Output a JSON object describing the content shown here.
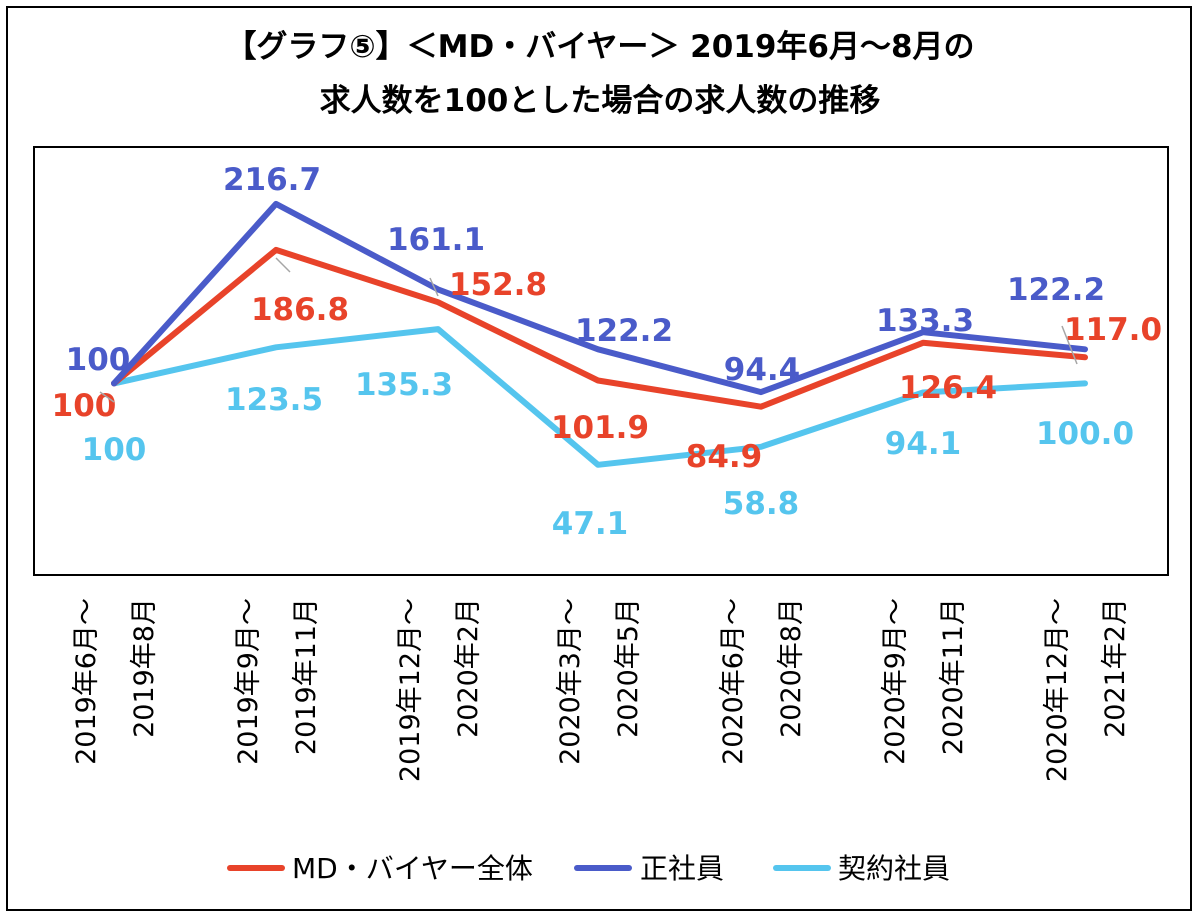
{
  "chart_data": {
    "type": "line",
    "title_line1": "【グラフ⑤】＜MD・バイヤー＞ 2019年6月～8月の",
    "title_line2": "求人数を100とした場合の求人数の推移",
    "categories": [
      [
        "2019年6月～",
        "2019年8月"
      ],
      [
        "2019年9月～",
        "2019年11月"
      ],
      [
        "2019年12月～",
        "2020年2月"
      ],
      [
        "2020年3月～",
        "2020年5月"
      ],
      [
        "2020年6月～",
        "2020年8月"
      ],
      [
        "2020年9月～",
        "2020年11月"
      ],
      [
        "2020年12月～",
        "2021年2月"
      ]
    ],
    "ylim": [
      0,
      250
    ],
    "series": [
      {
        "name": "MD・バイヤー全体",
        "color": "#E8432A",
        "values": [
          100,
          186.8,
          152.8,
          101.9,
          84.9,
          126.4,
          117.0
        ],
        "labels": [
          "100",
          "186.8",
          "152.8",
          "101.9",
          "84.9",
          "126.4",
          "117.0"
        ]
      },
      {
        "name": "正社員",
        "color": "#4A5BC9",
        "values": [
          100,
          216.7,
          161.1,
          122.2,
          94.4,
          133.3,
          122.2
        ],
        "labels": [
          "100",
          "216.7",
          "161.1",
          "122.2",
          "94.4",
          "133.3",
          "122.2"
        ]
      },
      {
        "name": "契約社員",
        "color": "#55C5EE",
        "values": [
          100,
          123.5,
          135.3,
          47.1,
          58.8,
          94.1,
          100.0
        ],
        "labels": [
          "100",
          "123.5",
          "135.3",
          "47.1",
          "58.8",
          "94.1",
          "100.0"
        ]
      }
    ],
    "legend_position": "bottom"
  }
}
